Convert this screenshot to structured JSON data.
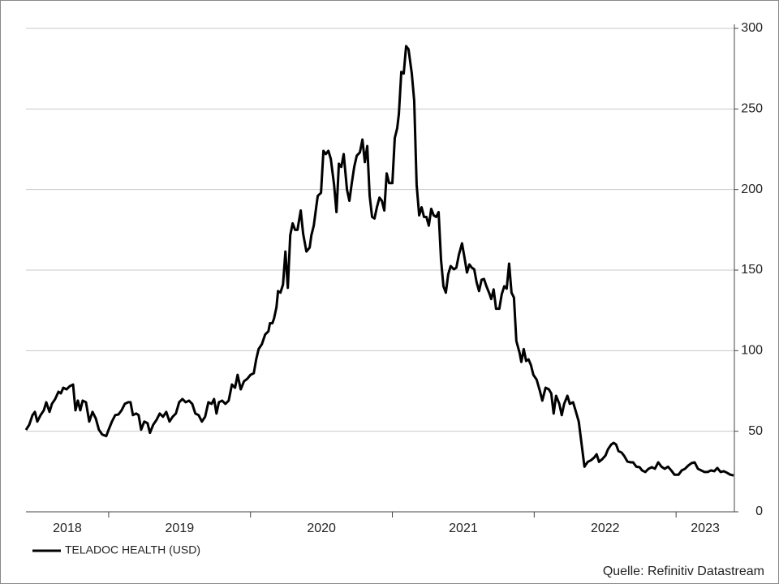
{
  "chart_data": {
    "type": "line",
    "series": [
      {
        "name": "TELADOC HEALTH (USD)",
        "color": "#000000",
        "values": [
          50.8,
          54,
          60,
          62,
          56,
          60,
          63,
          68,
          62,
          67,
          70,
          74.5,
          73.5,
          77,
          76,
          78,
          79,
          63,
          69,
          63,
          69,
          68,
          56,
          62,
          58,
          51,
          48,
          47,
          51,
          56,
          60,
          60.4,
          63,
          67,
          68,
          68,
          60,
          61,
          60,
          51,
          56,
          55,
          49,
          54,
          57,
          61,
          59,
          62,
          56,
          59,
          61,
          68,
          70,
          68,
          69,
          67,
          61,
          60,
          56,
          59,
          68,
          67,
          70,
          61,
          68,
          69,
          67,
          69,
          79,
          77,
          85,
          76,
          81,
          82.5,
          85,
          86,
          94.6,
          101,
          104,
          110,
          112,
          117,
          117,
          120,
          127,
          137,
          136,
          141,
          161.5,
          139,
          171.6,
          179,
          175,
          175,
          187,
          172.6,
          161.5,
          164,
          171.6,
          177.6,
          189,
          196,
          198,
          224,
          222,
          224,
          219,
          203,
          186,
          216,
          214,
          222,
          200,
          193,
          204,
          214,
          221,
          223,
          231,
          217,
          227,
          196,
          183,
          182,
          189,
          195,
          193,
          187,
          210,
          204,
          204,
          232,
          238,
          247,
          273,
          272,
          289,
          287,
          272,
          255,
          203,
          184,
          189,
          183,
          183,
          177.6,
          188,
          184,
          183,
          186,
          156.5,
          140,
          136,
          147.5,
          152.5,
          150.5,
          151.5,
          159.5,
          166.6,
          157.5,
          148.5,
          153.5,
          151.5,
          150.5,
          142.4,
          137,
          144,
          144.5,
          140,
          135,
          132,
          138,
          126,
          126,
          135,
          140,
          138.5,
          154,
          136,
          133,
          106,
          98.6,
          93,
          101,
          93.6,
          94.6,
          91,
          85,
          82,
          75,
          69,
          77,
          76,
          73.5,
          61,
          72,
          67,
          60,
          67,
          72,
          67,
          68,
          63,
          56,
          40,
          28,
          31,
          32,
          33.7,
          35.7,
          31,
          32.7,
          35,
          38.8,
          41.8,
          42.8,
          41.8,
          37.7,
          36.7,
          34.7,
          31.2,
          30.7,
          30.7,
          28,
          27.7,
          25.7,
          24.7,
          26.7,
          27.7,
          26.7,
          30.7,
          28,
          26.7,
          28,
          25.7,
          23,
          23,
          25.7,
          26.7,
          28.7,
          30.2,
          30.7,
          26.7,
          25.7,
          24.7,
          24.7,
          25.7,
          25.2,
          27.2,
          24.7,
          25.2,
          24.2,
          23,
          22.6
        ]
      }
    ],
    "x": [
      2018.417,
      2018.44,
      2018.463,
      2018.48,
      2018.497,
      2018.52,
      2018.543,
      2018.56,
      2018.583,
      2018.6,
      2018.623,
      2018.646,
      2018.663,
      2018.68,
      2018.703,
      2018.726,
      2018.749,
      2018.766,
      2018.783,
      2018.8,
      2018.817,
      2018.84,
      2018.863,
      2018.886,
      2018.909,
      2018.931,
      2018.954,
      2018.983,
      2019.0,
      2019.023,
      2019.046,
      2019.069,
      2019.091,
      2019.114,
      2019.137,
      2019.154,
      2019.171,
      2019.194,
      2019.211,
      2019.229,
      2019.251,
      2019.274,
      2019.291,
      2019.314,
      2019.337,
      2019.36,
      2019.383,
      2019.406,
      2019.429,
      2019.451,
      2019.474,
      2019.497,
      2019.52,
      2019.543,
      2019.566,
      2019.589,
      2019.611,
      2019.634,
      2019.657,
      2019.68,
      2019.703,
      2019.726,
      2019.743,
      2019.76,
      2019.777,
      2019.8,
      2019.823,
      2019.846,
      2019.869,
      2019.891,
      2019.909,
      2019.931,
      2019.954,
      2019.977,
      2020.0,
      2020.023,
      2020.04,
      2020.057,
      2020.08,
      2020.103,
      2020.126,
      2020.137,
      2020.154,
      2020.166,
      2020.183,
      2020.194,
      2020.211,
      2020.229,
      2020.246,
      2020.263,
      2020.28,
      2020.297,
      2020.314,
      2020.331,
      2020.354,
      2020.371,
      2020.394,
      2020.417,
      2020.429,
      2020.446,
      2020.463,
      2020.474,
      2020.497,
      2020.514,
      2020.531,
      2020.549,
      2020.566,
      2020.589,
      2020.606,
      2020.623,
      2020.64,
      2020.657,
      2020.68,
      2020.697,
      2020.714,
      2020.731,
      2020.749,
      2020.771,
      2020.789,
      2020.806,
      2020.823,
      2020.84,
      2020.857,
      2020.874,
      2020.891,
      2020.909,
      2020.926,
      2020.943,
      2020.96,
      2020.977,
      2021.0,
      2021.017,
      2021.034,
      2021.046,
      2021.063,
      2021.08,
      2021.097,
      2021.114,
      2021.137,
      2021.154,
      2021.171,
      2021.189,
      2021.206,
      2021.223,
      2021.24,
      2021.257,
      2021.274,
      2021.291,
      2021.309,
      2021.326,
      2021.343,
      2021.36,
      2021.377,
      2021.394,
      2021.411,
      2021.434,
      2021.451,
      2021.469,
      2021.491,
      2021.509,
      2021.526,
      2021.543,
      2021.56,
      2021.577,
      2021.594,
      2021.611,
      2021.629,
      2021.646,
      2021.663,
      2021.686,
      2021.697,
      2021.714,
      2021.731,
      2021.754,
      2021.771,
      2021.789,
      2021.806,
      2021.823,
      2021.84,
      2021.857,
      2021.874,
      2021.897,
      2021.909,
      2021.926,
      2021.943,
      2021.96,
      2021.977,
      2021.994,
      2022.017,
      2022.04,
      2022.057,
      2022.08,
      2022.103,
      2022.12,
      2022.137,
      2022.154,
      2022.177,
      2022.194,
      2022.211,
      2022.234,
      2022.251,
      2022.274,
      2022.291,
      2022.314,
      2022.337,
      2022.354,
      2022.377,
      2022.4,
      2022.423,
      2022.44,
      2022.457,
      2022.48,
      2022.503,
      2022.52,
      2022.543,
      2022.56,
      2022.577,
      2022.594,
      2022.617,
      2022.634,
      2022.657,
      2022.68,
      2022.697,
      2022.72,
      2022.743,
      2022.76,
      2022.783,
      2022.806,
      2022.829,
      2022.851,
      2022.874,
      2022.897,
      2022.92,
      2022.943,
      2022.966,
      2022.989,
      2023.017,
      2023.04,
      2023.063,
      2023.086,
      2023.109,
      2023.131,
      2023.154,
      2023.177,
      2023.2,
      2023.223,
      2023.246,
      2023.269,
      2023.291,
      2023.314,
      2023.337,
      2023.36,
      2023.383,
      2023.406
    ],
    "xlim": [
      2018.417,
      2023.411
    ],
    "xticks": [
      2018,
      2019,
      2020,
      2021,
      2022,
      2023
    ],
    "ylim": [
      0,
      300
    ],
    "yticks": [
      0,
      50,
      100,
      150,
      200,
      250,
      300
    ],
    "grid": true,
    "legend": "bottom-left",
    "source": "Quelle: Refinitiv Datastream"
  }
}
